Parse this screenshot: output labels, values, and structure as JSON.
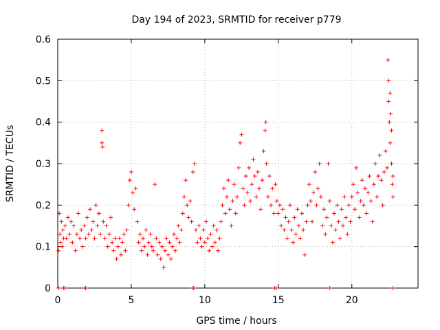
{
  "chart_data": {
    "type": "scatter",
    "title": "Day 194 of 2023, SRMTID for receiver p779",
    "xlabel": "GPS time / hours",
    "ylabel": "SRMTID / TECUs",
    "xlim": [
      0,
      24.5
    ],
    "ylim": [
      0,
      0.6
    ],
    "xticks": [
      0,
      5,
      10,
      15,
      20
    ],
    "yticks": [
      0,
      0.1,
      0.2,
      0.3,
      0.4,
      0.5,
      0.6
    ],
    "xtick_labels": [
      "0",
      "5",
      "10",
      "15",
      "20"
    ],
    "ytick_labels": [
      "0",
      "0.1",
      "0.2",
      "0.3",
      "0.4",
      "0.5",
      "0.6"
    ],
    "grid": true,
    "marker": "+",
    "series": [
      {
        "name": "SRMTID",
        "color": "#ff0000",
        "points": [
          [
            0.05,
            0.09
          ],
          [
            0.1,
            0.18
          ],
          [
            0.15,
            0.13
          ],
          [
            0.2,
            0.11
          ],
          [
            0.25,
            0.16
          ],
          [
            0.3,
            0.1
          ],
          [
            0.35,
            0.14
          ],
          [
            0.4,
            0.12
          ],
          [
            0.5,
            0.15
          ],
          [
            0.6,
            0.12
          ],
          [
            0.7,
            0.17
          ],
          [
            0.8,
            0.13
          ],
          [
            0.9,
            0.16
          ],
          [
            1.0,
            0.11
          ],
          [
            1.1,
            0.15
          ],
          [
            1.2,
            0.09
          ],
          [
            1.3,
            0.13
          ],
          [
            1.4,
            0.18
          ],
          [
            1.5,
            0.12
          ],
          [
            1.6,
            0.14
          ],
          [
            1.7,
            0.1
          ],
          [
            1.8,
            0.15
          ],
          [
            1.9,
            0.12
          ],
          [
            2.0,
            0.17
          ],
          [
            2.1,
            0.13
          ],
          [
            2.2,
            0.19
          ],
          [
            2.3,
            0.14
          ],
          [
            2.4,
            0.16
          ],
          [
            2.5,
            0.12
          ],
          [
            2.6,
            0.2
          ],
          [
            2.7,
            0.15
          ],
          [
            2.8,
            0.18
          ],
          [
            2.9,
            0.13
          ],
          [
            3.0,
            0.38
          ],
          [
            3.0,
            0.35
          ],
          [
            3.05,
            0.34
          ],
          [
            3.1,
            0.16
          ],
          [
            3.2,
            0.12
          ],
          [
            3.3,
            0.15
          ],
          [
            3.4,
            0.1
          ],
          [
            3.5,
            0.13
          ],
          [
            3.6,
            0.17
          ],
          [
            3.7,
            0.11
          ],
          [
            3.8,
            0.09
          ],
          [
            3.9,
            0.12
          ],
          [
            4.0,
            0.07
          ],
          [
            4.1,
            0.1
          ],
          [
            4.2,
            0.12
          ],
          [
            4.3,
            0.08
          ],
          [
            4.4,
            0.11
          ],
          [
            4.5,
            0.13
          ],
          [
            4.6,
            0.09
          ],
          [
            4.7,
            0.14
          ],
          [
            4.8,
            0.2
          ],
          [
            4.9,
            0.26
          ],
          [
            5.0,
            0.28
          ],
          [
            5.1,
            0.23
          ],
          [
            5.2,
            0.19
          ],
          [
            5.3,
            0.24
          ],
          [
            5.4,
            0.16
          ],
          [
            5.5,
            0.11
          ],
          [
            5.6,
            0.13
          ],
          [
            5.7,
            0.09
          ],
          [
            5.8,
            0.12
          ],
          [
            5.9,
            0.1
          ],
          [
            6.0,
            0.14
          ],
          [
            6.1,
            0.08
          ],
          [
            6.2,
            0.11
          ],
          [
            6.3,
            0.13
          ],
          [
            6.4,
            0.1
          ],
          [
            6.5,
            0.09
          ],
          [
            6.6,
            0.25
          ],
          [
            6.7,
            0.12
          ],
          [
            6.8,
            0.08
          ],
          [
            6.9,
            0.11
          ],
          [
            7.0,
            0.07
          ],
          [
            7.1,
            0.1
          ],
          [
            7.2,
            0.05
          ],
          [
            7.3,
            0.09
          ],
          [
            7.4,
            0.12
          ],
          [
            7.5,
            0.08
          ],
          [
            7.6,
            0.11
          ],
          [
            7.7,
            0.07
          ],
          [
            7.8,
            0.1
          ],
          [
            7.9,
            0.13
          ],
          [
            8.0,
            0.09
          ],
          [
            8.1,
            0.12
          ],
          [
            8.2,
            0.15
          ],
          [
            8.3,
            0.11
          ],
          [
            8.4,
            0.14
          ],
          [
            8.5,
            0.18
          ],
          [
            8.6,
            0.22
          ],
          [
            8.7,
            0.26
          ],
          [
            8.8,
            0.2
          ],
          [
            8.9,
            0.17
          ],
          [
            9.0,
            0.21
          ],
          [
            9.1,
            0.16
          ],
          [
            9.2,
            0.28
          ],
          [
            9.3,
            0.3
          ],
          [
            9.4,
            0.14
          ],
          [
            9.5,
            0.11
          ],
          [
            9.6,
            0.15
          ],
          [
            9.7,
            0.12
          ],
          [
            9.8,
            0.1
          ],
          [
            9.9,
            0.14
          ],
          [
            10.0,
            0.11
          ],
          [
            10.1,
            0.16
          ],
          [
            10.2,
            0.12
          ],
          [
            10.3,
            0.09
          ],
          [
            10.4,
            0.13
          ],
          [
            10.5,
            0.1
          ],
          [
            10.6,
            0.15
          ],
          [
            10.7,
            0.11
          ],
          [
            10.8,
            0.14
          ],
          [
            10.9,
            0.09
          ],
          [
            11.0,
            0.12
          ],
          [
            11.1,
            0.16
          ],
          [
            11.2,
            0.2
          ],
          [
            11.3,
            0.24
          ],
          [
            11.4,
            0.18
          ],
          [
            11.5,
            0.22
          ],
          [
            11.6,
            0.26
          ],
          [
            11.7,
            0.19
          ],
          [
            11.8,
            0.15
          ],
          [
            11.9,
            0.21
          ],
          [
            12.0,
            0.25
          ],
          [
            12.1,
            0.18
          ],
          [
            12.2,
            0.22
          ],
          [
            12.3,
            0.29
          ],
          [
            12.4,
            0.35
          ],
          [
            12.5,
            0.37
          ],
          [
            12.6,
            0.24
          ],
          [
            12.7,
            0.2
          ],
          [
            12.8,
            0.27
          ],
          [
            12.9,
            0.23
          ],
          [
            13.0,
            0.29
          ],
          [
            13.1,
            0.21
          ],
          [
            13.2,
            0.25
          ],
          [
            13.3,
            0.31
          ],
          [
            13.4,
            0.27
          ],
          [
            13.5,
            0.22
          ],
          [
            13.6,
            0.28
          ],
          [
            13.7,
            0.24
          ],
          [
            13.8,
            0.19
          ],
          [
            13.9,
            0.26
          ],
          [
            14.0,
            0.33
          ],
          [
            14.1,
            0.38
          ],
          [
            14.15,
            0.4
          ],
          [
            14.2,
            0.3
          ],
          [
            14.3,
            0.22
          ],
          [
            14.4,
            0.27
          ],
          [
            14.5,
            0.2
          ],
          [
            14.6,
            0.24
          ],
          [
            14.7,
            0.18
          ],
          [
            14.8,
            0.25
          ],
          [
            14.9,
            0.21
          ],
          [
            15.0,
            0.18
          ],
          [
            15.1,
            0.2
          ],
          [
            15.2,
            0.15
          ],
          [
            15.3,
            0.19
          ],
          [
            15.4,
            0.14
          ],
          [
            15.5,
            0.17
          ],
          [
            15.6,
            0.12
          ],
          [
            15.7,
            0.16
          ],
          [
            15.8,
            0.2
          ],
          [
            15.9,
            0.14
          ],
          [
            16.0,
            0.11
          ],
          [
            16.1,
            0.17
          ],
          [
            16.2,
            0.13
          ],
          [
            16.3,
            0.19
          ],
          [
            16.4,
            0.15
          ],
          [
            16.5,
            0.12
          ],
          [
            16.6,
            0.18
          ],
          [
            16.7,
            0.14
          ],
          [
            16.8,
            0.08
          ],
          [
            16.9,
            0.16
          ],
          [
            17.0,
            0.2
          ],
          [
            17.1,
            0.25
          ],
          [
            17.2,
            0.21
          ],
          [
            17.3,
            0.16
          ],
          [
            17.4,
            0.23
          ],
          [
            17.5,
            0.28
          ],
          [
            17.6,
            0.2
          ],
          [
            17.7,
            0.24
          ],
          [
            17.8,
            0.3
          ],
          [
            17.9,
            0.22
          ],
          [
            18.0,
            0.15
          ],
          [
            18.1,
            0.19
          ],
          [
            18.2,
            0.13
          ],
          [
            18.3,
            0.17
          ],
          [
            18.4,
            0.3
          ],
          [
            18.5,
            0.21
          ],
          [
            18.6,
            0.15
          ],
          [
            18.7,
            0.11
          ],
          [
            18.8,
            0.18
          ],
          [
            18.9,
            0.14
          ],
          [
            19.0,
            0.2
          ],
          [
            19.1,
            0.16
          ],
          [
            19.2,
            0.12
          ],
          [
            19.3,
            0.19
          ],
          [
            19.4,
            0.15
          ],
          [
            19.5,
            0.22
          ],
          [
            19.6,
            0.17
          ],
          [
            19.7,
            0.13
          ],
          [
            19.8,
            0.2
          ],
          [
            19.9,
            0.16
          ],
          [
            20.0,
            0.22
          ],
          [
            20.1,
            0.25
          ],
          [
            20.2,
            0.19
          ],
          [
            20.3,
            0.29
          ],
          [
            20.4,
            0.23
          ],
          [
            20.5,
            0.17
          ],
          [
            20.6,
            0.21
          ],
          [
            20.7,
            0.26
          ],
          [
            20.8,
            0.2
          ],
          [
            20.9,
            0.24
          ],
          [
            21.0,
            0.18
          ],
          [
            21.1,
            0.23
          ],
          [
            21.2,
            0.27
          ],
          [
            21.3,
            0.21
          ],
          [
            21.4,
            0.16
          ],
          [
            21.5,
            0.25
          ],
          [
            21.6,
            0.3
          ],
          [
            21.7,
            0.22
          ],
          [
            21.8,
            0.27
          ],
          [
            21.9,
            0.32
          ],
          [
            22.0,
            0.26
          ],
          [
            22.1,
            0.2
          ],
          [
            22.2,
            0.28
          ],
          [
            22.3,
            0.33
          ],
          [
            22.4,
            0.29
          ],
          [
            22.45,
            0.55
          ],
          [
            22.5,
            0.5
          ],
          [
            22.5,
            0.45
          ],
          [
            22.55,
            0.4
          ],
          [
            22.6,
            0.47
          ],
          [
            22.6,
            0.35
          ],
          [
            22.65,
            0.42
          ],
          [
            22.7,
            0.38
          ],
          [
            22.7,
            0.3
          ],
          [
            22.75,
            0.25
          ],
          [
            22.8,
            0.27
          ],
          [
            22.8,
            0.22
          ],
          [
            0.05,
            0.0
          ],
          [
            0.4,
            0.0
          ],
          [
            0.5,
            0.0
          ],
          [
            1.85,
            0.0
          ],
          [
            1.9,
            0.0
          ],
          [
            9.2,
            0.0
          ],
          [
            9.25,
            0.0
          ],
          [
            14.75,
            0.0
          ],
          [
            14.85,
            0.0
          ],
          [
            18.5,
            0.0
          ],
          [
            22.8,
            0.0
          ]
        ]
      }
    ]
  }
}
